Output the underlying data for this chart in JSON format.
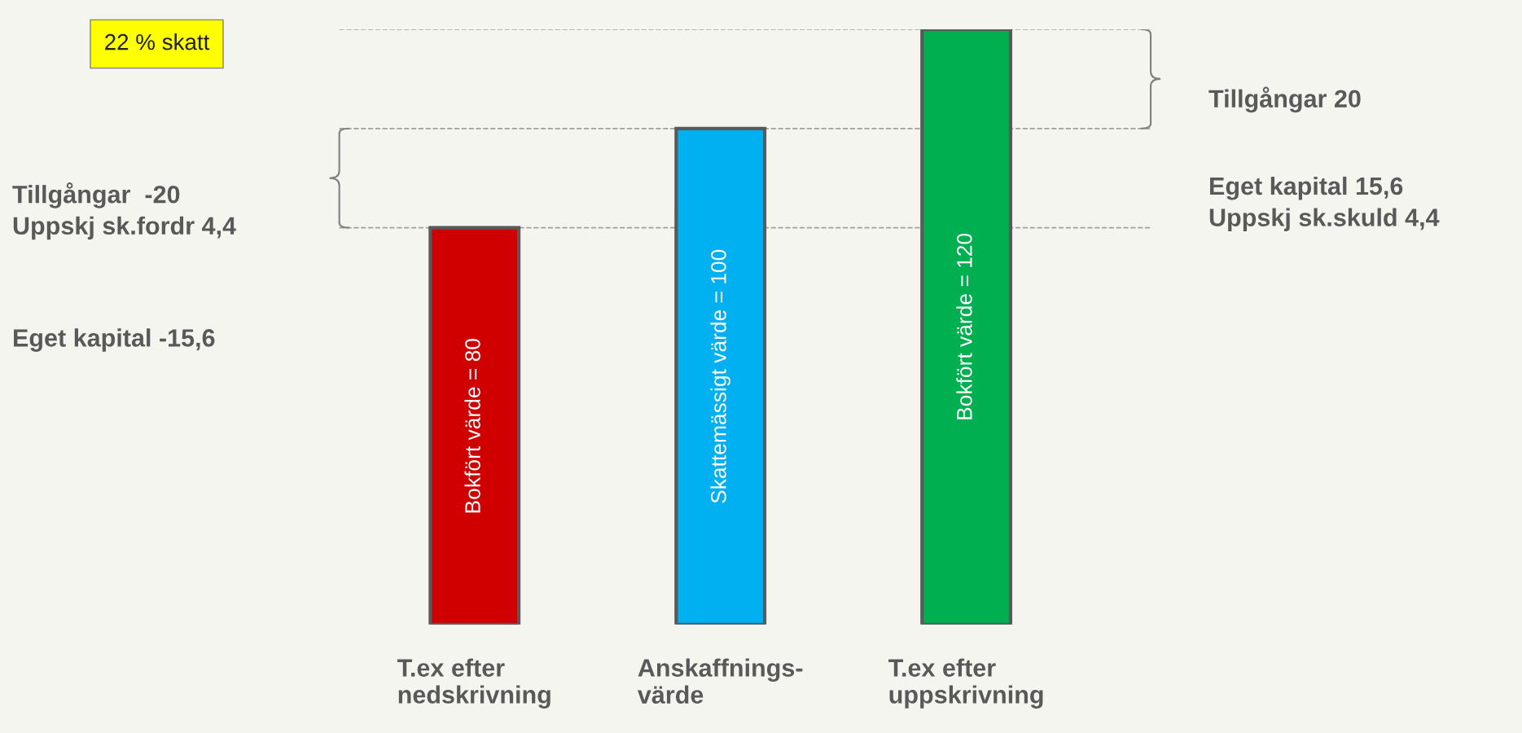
{
  "chart_data": {
    "type": "bar",
    "categories": [
      "T.ex efter\nnedskrivning",
      "Anskaffnings-\nvärde",
      "T.ex efter\nuppskrivning"
    ],
    "values": [
      80,
      100,
      120
    ],
    "colors": [
      "#d00000",
      "#00b0f0",
      "#00b050"
    ],
    "value_labels": [
      "Bokfört värde = 80",
      "Skattemässigt värde = 100",
      "Bokfört värde = 120"
    ],
    "tick_labels": "x",
    "ref_lines": [
      {
        "axis": "y",
        "value": 80,
        "color": "#a0a0a0",
        "line_style": "dashed"
      },
      {
        "axis": "y",
        "value": 100,
        "color": "#a0a0a0",
        "line_style": "dashed"
      },
      {
        "axis": "y",
        "value": 120,
        "color": "#a0a0a0",
        "line_style": "dashed"
      }
    ],
    "annotations": [
      "22 % skatt",
      "Tillgångar  -20\nUppskj sk.fordr 4,4",
      "Eget kapital -15,6",
      "Tillgångar 20",
      "Eget kapital 15,6\nUppskj sk.skuld 4,4"
    ]
  }
}
